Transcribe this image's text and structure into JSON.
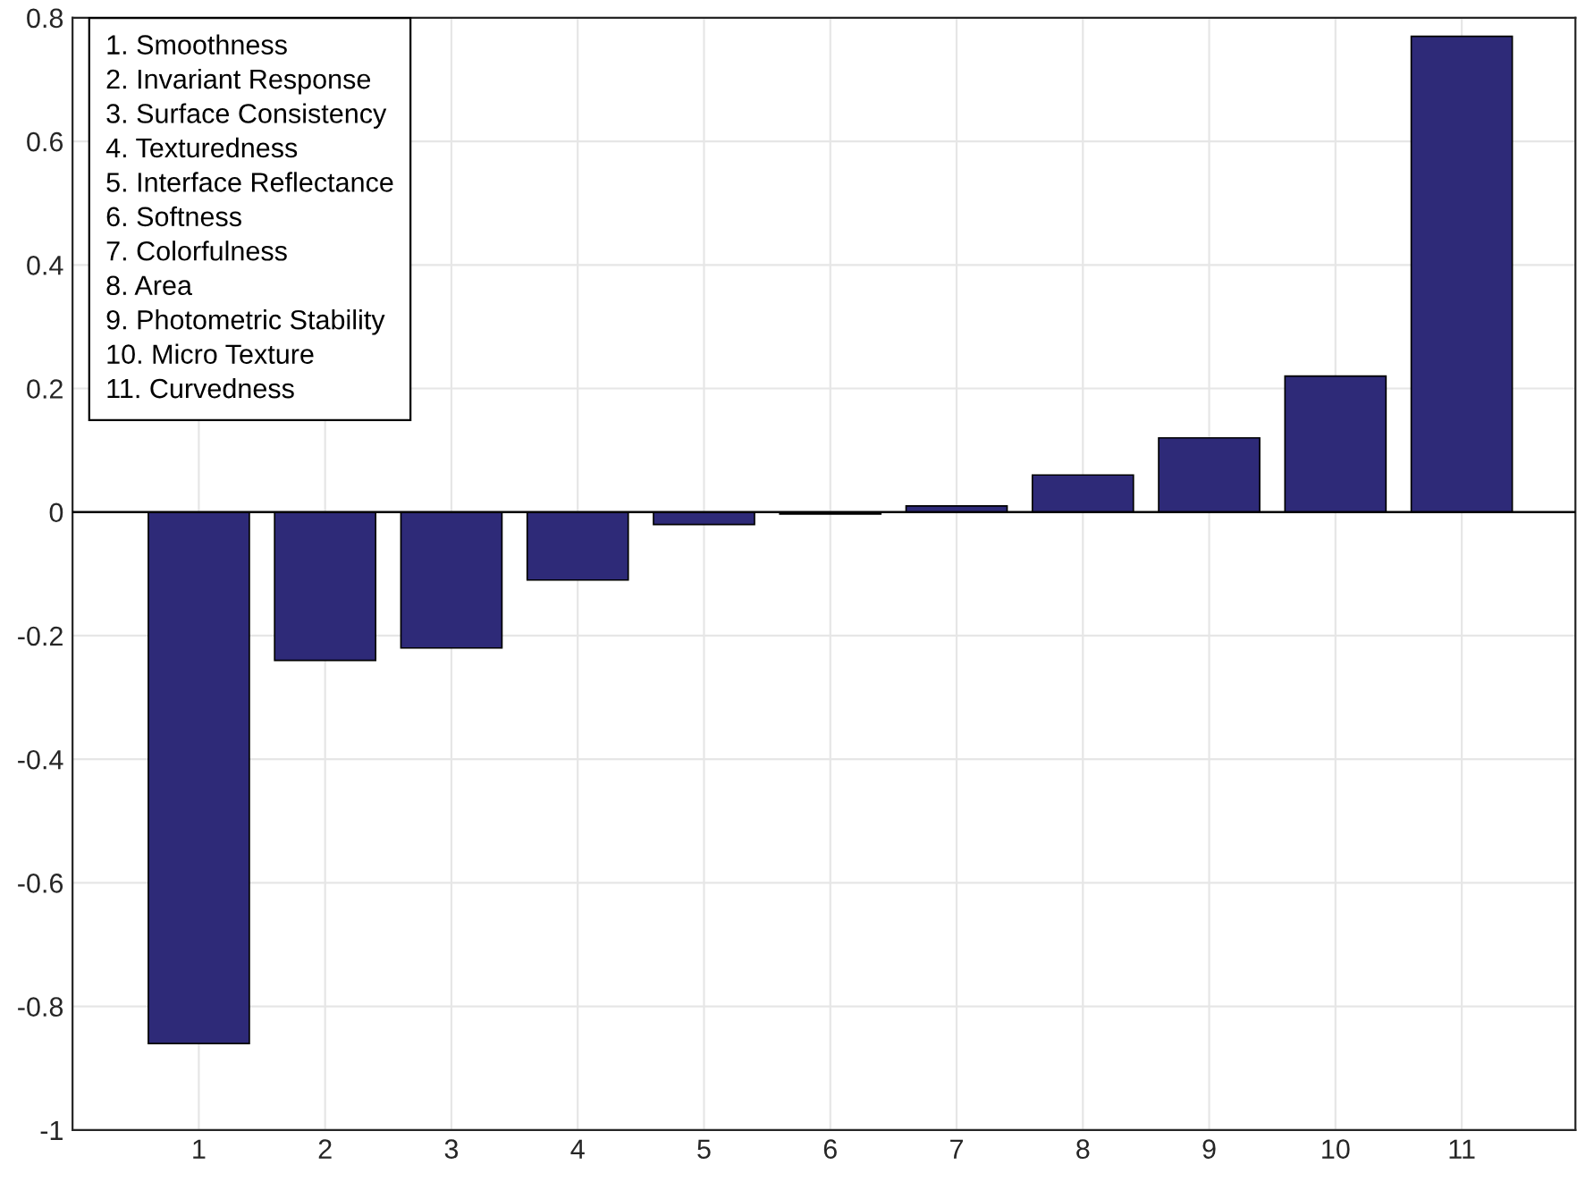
{
  "chart_data": {
    "type": "bar",
    "categories": [
      "1",
      "2",
      "3",
      "4",
      "5",
      "6",
      "7",
      "8",
      "9",
      "10",
      "11"
    ],
    "values": [
      -0.86,
      -0.24,
      -0.22,
      -0.11,
      -0.02,
      -0.003,
      0.01,
      0.06,
      0.12,
      0.22,
      0.77
    ],
    "color": "#2e2a78",
    "ylim": [
      -1,
      0.8
    ],
    "yticks": [
      -1,
      -0.8,
      -0.6,
      -0.4,
      -0.2,
      0,
      0.2,
      0.4,
      0.6,
      0.8
    ],
    "grid": true,
    "legend": false,
    "ref_lines": [
      {
        "axis": "y",
        "value": 0,
        "color": "#000000"
      }
    ],
    "annotations": [
      "1. Smoothness",
      "2. Invariant Response",
      "3. Surface Consistency",
      "4. Texturedness",
      "5. Interface Reflectance",
      "6. Softness",
      "7. Colorfulness",
      "8. Area",
      "9. Photometric Stability",
      "10. Micro Texture",
      "11. Curvedness"
    ]
  }
}
